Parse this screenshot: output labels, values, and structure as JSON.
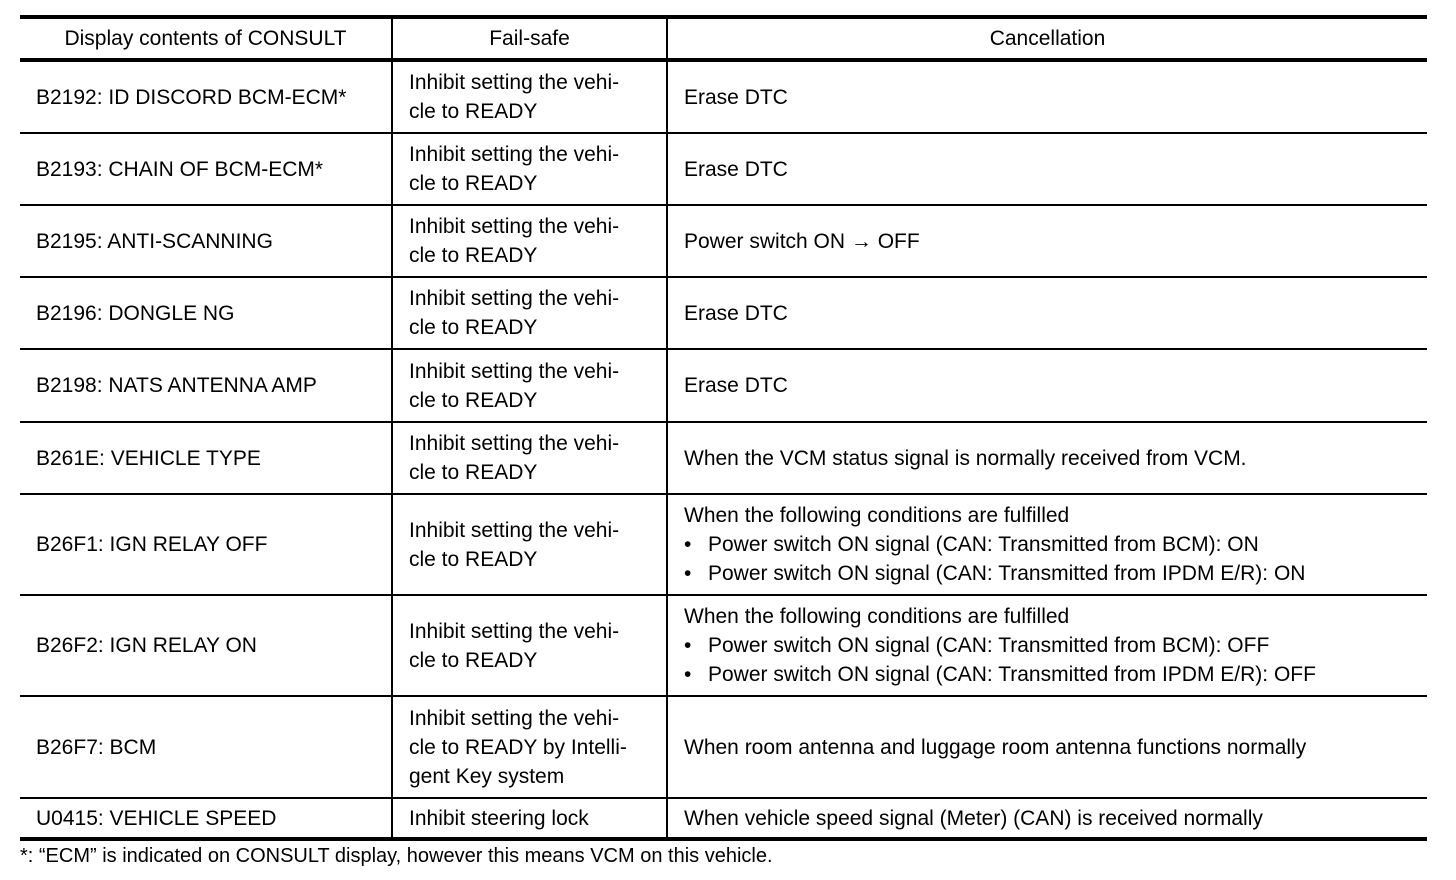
{
  "headers": [
    "Display contents of CONSULT",
    "Fail-safe",
    "Cancellation"
  ],
  "rows": [
    {
      "display": "B2192: ID DISCORD BCM-ECM*",
      "failsafe": "Inhibit setting the vehi-\ncle to READY",
      "cancel": "Erase DTC",
      "bullets": []
    },
    {
      "display": "B2193: CHAIN OF BCM-ECM*",
      "failsafe": "Inhibit setting the vehi-\ncle to READY",
      "cancel": "Erase DTC",
      "bullets": []
    },
    {
      "display": "B2195: ANTI-SCANNING",
      "failsafe": "Inhibit setting the vehi-\ncle to READY",
      "cancel": "Power switch ON → OFF",
      "bullets": []
    },
    {
      "display": "B2196: DONGLE NG",
      "failsafe": "Inhibit setting the vehi-\ncle to READY",
      "cancel": "Erase DTC",
      "bullets": []
    },
    {
      "display": "B2198: NATS ANTENNA AMP",
      "failsafe": "Inhibit setting the vehi-\ncle to READY",
      "cancel": "Erase DTC",
      "bullets": []
    },
    {
      "display": "B261E: VEHICLE TYPE",
      "failsafe": "Inhibit setting the vehi-\ncle to READY",
      "cancel": "When the VCM status signal is normally received from VCM.",
      "bullets": []
    },
    {
      "display": "B26F1: IGN RELAY OFF",
      "failsafe": "Inhibit setting the vehi-\ncle to READY",
      "cancel": "When the following conditions are fulfilled",
      "bullets": [
        "Power switch ON signal (CAN: Transmitted from BCM): ON",
        "Power switch ON signal (CAN: Transmitted from IPDM E/R): ON"
      ]
    },
    {
      "display": "B26F2: IGN RELAY ON",
      "failsafe": "Inhibit setting the vehi-\ncle to READY",
      "cancel": "When the following conditions are fulfilled",
      "bullets": [
        "Power switch ON signal (CAN: Transmitted from BCM): OFF",
        "Power switch ON signal (CAN: Transmitted from IPDM E/R): OFF"
      ]
    },
    {
      "display": "B26F7: BCM",
      "failsafe": "Inhibit setting the vehi-\ncle to READY by Intelli-\ngent Key system",
      "cancel": "When room antenna and luggage room antenna functions normally",
      "bullets": []
    },
    {
      "display": "U0415: VEHICLE SPEED",
      "failsafe": "Inhibit steering lock",
      "cancel": "When vehicle speed signal (Meter) (CAN) is received normally",
      "bullets": []
    }
  ],
  "bullet_char": "•",
  "footnote": "*: “ECM” is indicated on CONSULT display, however this means VCM on this vehicle."
}
